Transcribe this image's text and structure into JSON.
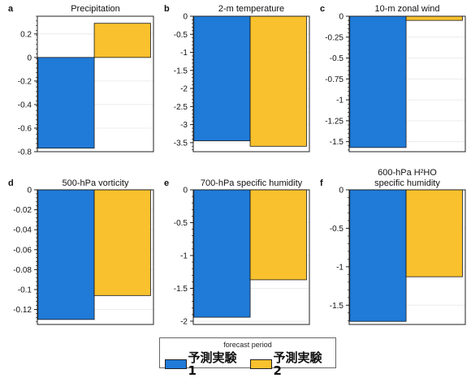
{
  "colors": {
    "series1": "#1f7ad8",
    "series2": "#f8c12d"
  },
  "legend": {
    "title": "forecast period",
    "entries": [
      "予測実験1",
      "予測実験2"
    ]
  },
  "chart_data": [
    {
      "type": "bar",
      "panel_letter": "a",
      "title": "Precipitation",
      "ylim": [
        -0.8,
        0.35
      ],
      "ticks": [
        0.2,
        0,
        -0.2,
        -0.4,
        -0.6,
        -0.8
      ],
      "tick_labels": [
        "0.2",
        "0",
        "-0.2",
        "-0.4",
        "-0.6",
        "-0.8"
      ],
      "series": [
        {
          "name": "予測実験1",
          "values": [
            -0.77
          ]
        },
        {
          "name": "予測実験2",
          "values": [
            0.29
          ]
        }
      ]
    },
    {
      "type": "bar",
      "panel_letter": "b",
      "title": "2-m temperature",
      "ylim": [
        -3.75,
        0
      ],
      "ticks": [
        0,
        -0.5,
        -1,
        -1.5,
        -2,
        -2.5,
        -3,
        -3.5
      ],
      "tick_labels": [
        "0",
        "-0.5",
        "-1",
        "-1.5",
        "-2",
        "-2.5",
        "-3",
        "-3.5"
      ],
      "series": [
        {
          "name": "予測実験1",
          "values": [
            -3.45
          ]
        },
        {
          "name": "予測実験2",
          "values": [
            -3.6
          ]
        }
      ]
    },
    {
      "type": "bar",
      "panel_letter": "c",
      "title": "10-m zonal wind",
      "ylim": [
        -1.62,
        0
      ],
      "ticks": [
        0,
        -0.25,
        -0.5,
        -0.75,
        -1,
        -1.25,
        -1.5
      ],
      "tick_labels": [
        "0",
        "-0.25",
        "-0.5",
        "-0.75",
        "-1",
        "-1.25",
        "-1.5"
      ],
      "series": [
        {
          "name": "予測実験1",
          "values": [
            -1.57
          ]
        },
        {
          "name": "予測実験2",
          "values": [
            -0.05
          ]
        }
      ]
    },
    {
      "type": "bar",
      "panel_letter": "d",
      "title": "500-hPa vorticity",
      "ylim": [
        -0.135,
        0
      ],
      "ticks": [
        0,
        -0.02,
        -0.04,
        -0.06,
        -0.08,
        -0.1,
        -0.12
      ],
      "tick_labels": [
        "0",
        "-0.02",
        "-0.04",
        "-0.06",
        "-0.08",
        "-0.1",
        "-0.12"
      ],
      "series": [
        {
          "name": "予測実験1",
          "values": [
            -0.13
          ]
        },
        {
          "name": "予測実験2",
          "values": [
            -0.106
          ]
        }
      ]
    },
    {
      "type": "bar",
      "panel_letter": "e",
      "title": "700-hPa specific humidity",
      "ylim": [
        -2.05,
        0
      ],
      "ticks": [
        0,
        -0.5,
        -1,
        -1.5,
        -2
      ],
      "tick_labels": [
        "0",
        "-0.5",
        "-1",
        "-1.5",
        "-2"
      ],
      "series": [
        {
          "name": "予測実験1",
          "values": [
            -1.94
          ]
        },
        {
          "name": "予測実験2",
          "values": [
            -1.37
          ]
        }
      ]
    },
    {
      "type": "bar",
      "panel_letter": "f",
      "title_lines": [
        "600-hPa H²HO",
        "specific humidity"
      ],
      "ylim": [
        -1.75,
        0
      ],
      "ticks": [
        0,
        -0.5,
        -1,
        -1.5
      ],
      "tick_labels": [
        "0",
        "-0.5",
        "-1",
        "-1.5"
      ],
      "series": [
        {
          "name": "予測実験1",
          "values": [
            -1.71
          ]
        },
        {
          "name": "予測実験2",
          "values": [
            -1.13
          ]
        }
      ]
    }
  ]
}
